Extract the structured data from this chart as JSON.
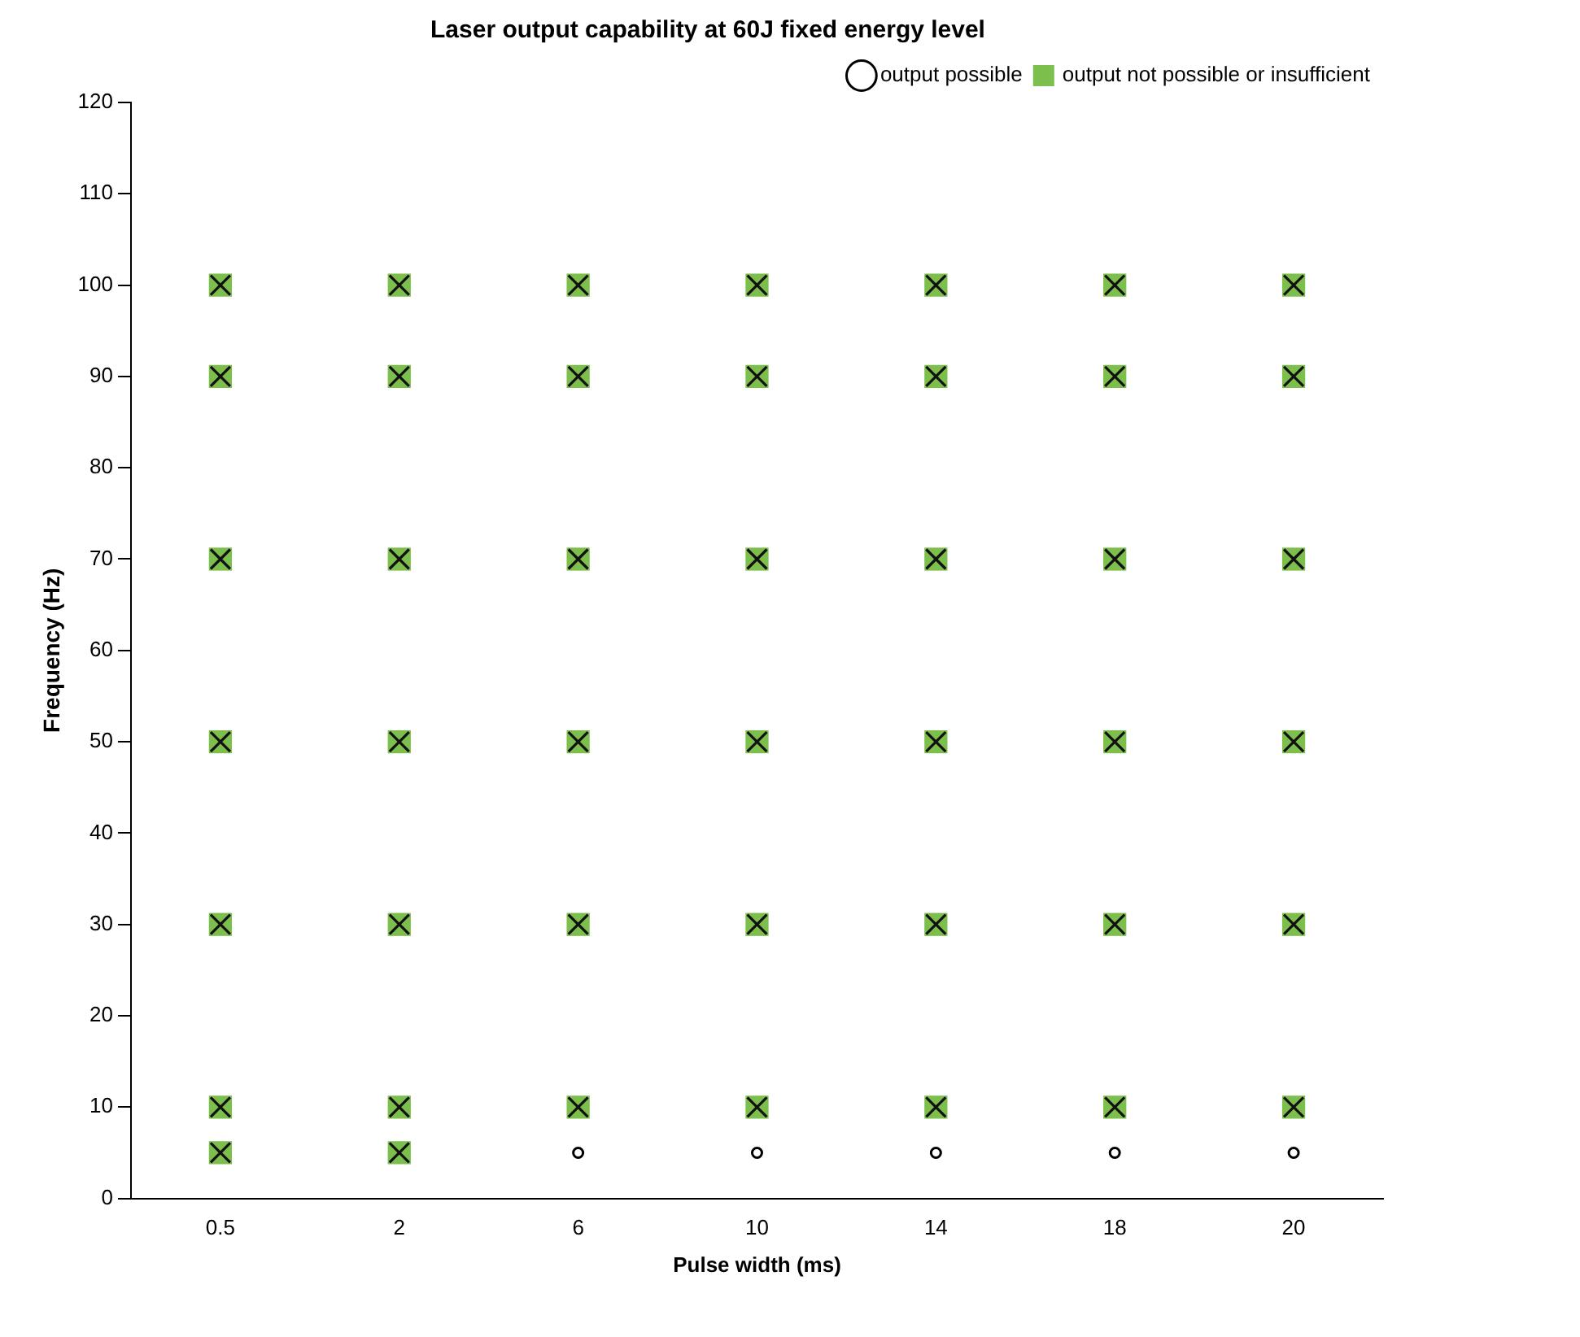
{
  "chart_data": {
    "type": "scatter",
    "title": "Laser output capability at 60J fixed energy level",
    "xlabel": "Pulse width (ms)",
    "ylabel": "Frequency (Hz)",
    "categories": [
      "0.5",
      "2",
      "6",
      "10",
      "14",
      "18",
      "20"
    ],
    "ylim": [
      0,
      120
    ],
    "yticks": [
      0,
      10,
      20,
      30,
      40,
      50,
      60,
      70,
      80,
      90,
      100,
      110,
      120
    ],
    "grid": false,
    "legend": "top right",
    "series": [
      {
        "name": "output possible",
        "color": "#000000",
        "marker": "circle",
        "x": [
          "6",
          "10",
          "14",
          "18",
          "20"
        ],
        "values": [
          5,
          5,
          5,
          5,
          5
        ]
      },
      {
        "name": "output not possible or insufficient",
        "color": "#7dbf4c",
        "marker": "square",
        "x": [
          "0.5",
          "0.5",
          "0.5",
          "0.5",
          "0.5",
          "0.5",
          "0.5",
          "2",
          "2",
          "2",
          "2",
          "2",
          "2",
          "2",
          "6",
          "6",
          "6",
          "6",
          "6",
          "6",
          "10",
          "10",
          "10",
          "10",
          "10",
          "10",
          "14",
          "14",
          "14",
          "14",
          "14",
          "14",
          "18",
          "18",
          "18",
          "18",
          "18",
          "18",
          "20",
          "20",
          "20",
          "20",
          "20",
          "20"
        ],
        "values": [
          100,
          90,
          70,
          50,
          30,
          10,
          5,
          100,
          90,
          70,
          50,
          30,
          10,
          5,
          100,
          90,
          70,
          50,
          30,
          10,
          100,
          90,
          70,
          50,
          30,
          10,
          100,
          90,
          70,
          50,
          30,
          10,
          100,
          90,
          70,
          50,
          30,
          10,
          100,
          90,
          70,
          50,
          30,
          10
        ]
      }
    ]
  }
}
